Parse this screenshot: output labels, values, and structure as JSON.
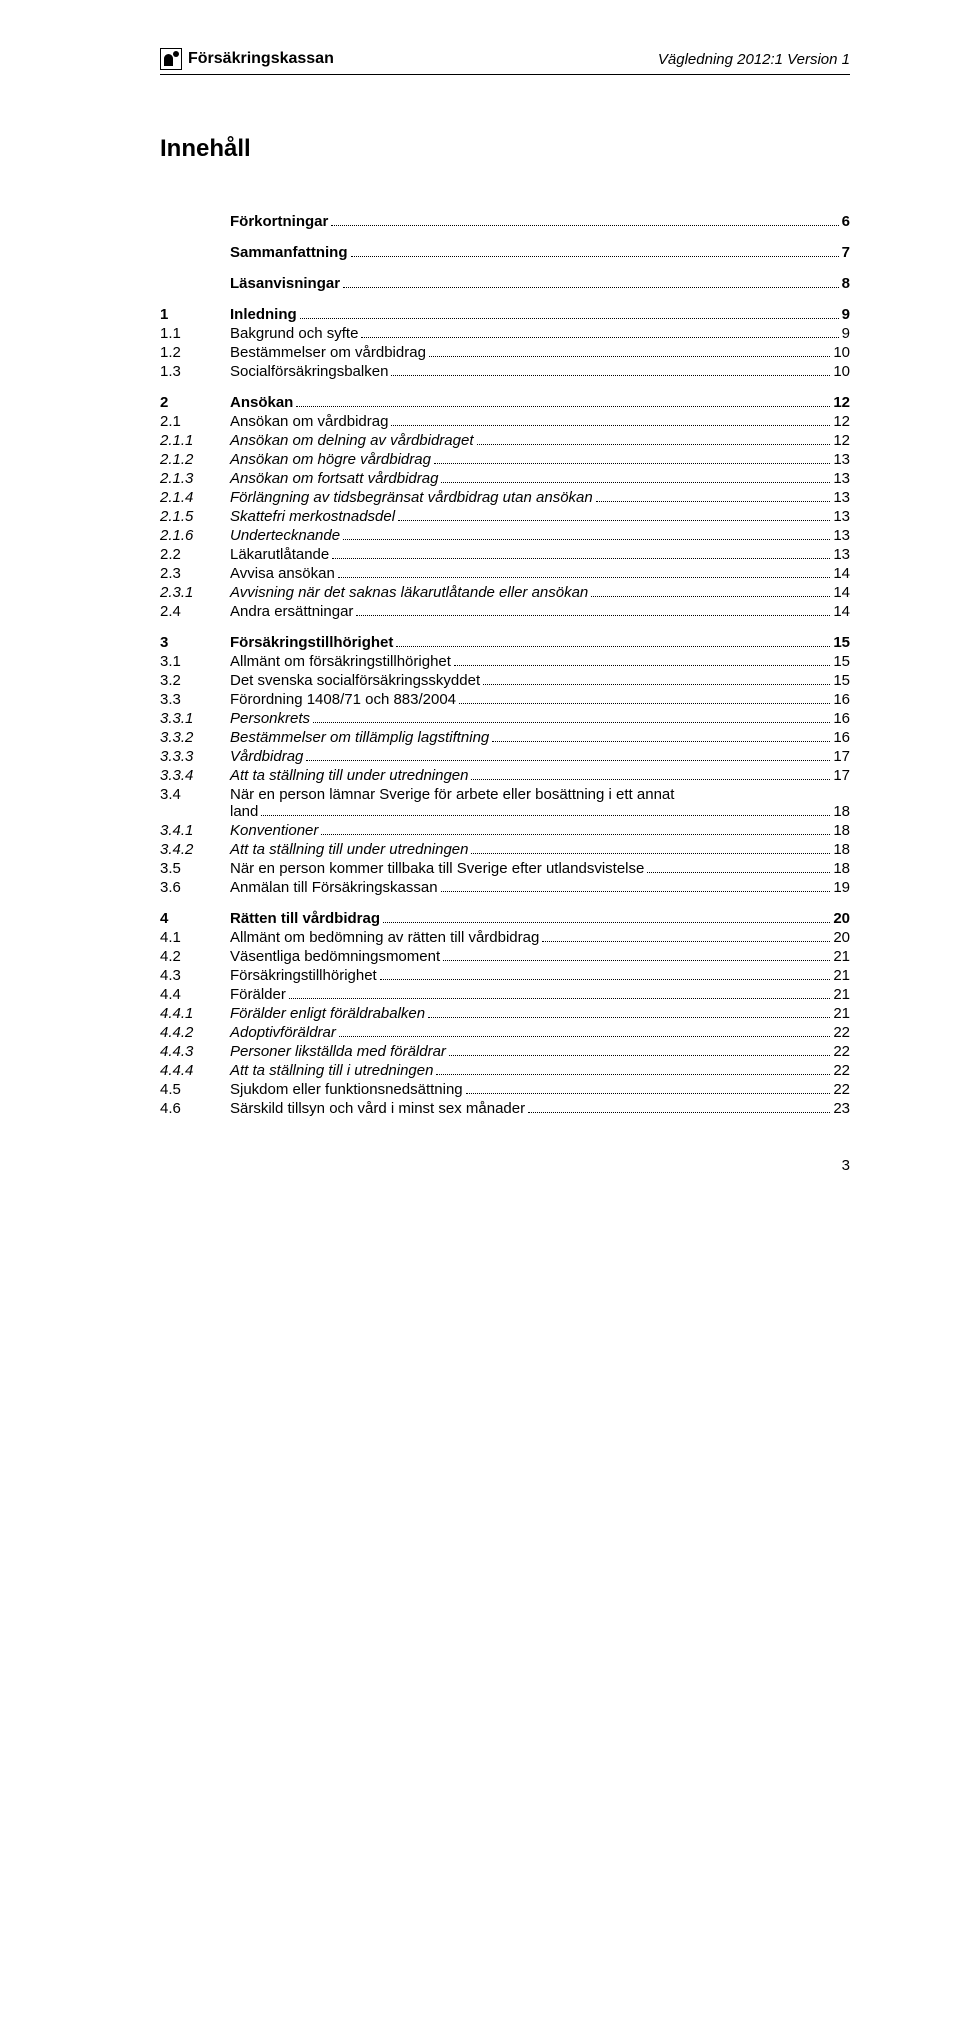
{
  "header": {
    "logo_text": "Försäkringskassan",
    "doc_ref": "Vägledning 2012:1 Version 1"
  },
  "title": "Innehåll",
  "page_number": "3",
  "toc": [
    {
      "num": "",
      "title": "Förkortningar",
      "page": "6",
      "bold": true,
      "gap": false
    },
    {
      "num": "",
      "title": "Sammanfattning",
      "page": "7",
      "bold": true,
      "gap": true
    },
    {
      "num": "",
      "title": "Läsanvisningar",
      "page": "8",
      "bold": true,
      "gap": true
    },
    {
      "num": "1",
      "title": "Inledning",
      "page": "9",
      "bold": true,
      "gap": true
    },
    {
      "num": "1.1",
      "title": "Bakgrund och syfte",
      "page": "9",
      "gap": false
    },
    {
      "num": "1.2",
      "title": "Bestämmelser om vårdbidrag",
      "page": "10",
      "gap": false
    },
    {
      "num": "1.3",
      "title": "Socialförsäkringsbalken",
      "page": "10",
      "gap": false
    },
    {
      "num": "2",
      "title": "Ansökan",
      "page": "12",
      "bold": true,
      "gap": true
    },
    {
      "num": "2.1",
      "title": "Ansökan om vårdbidrag",
      "page": "12",
      "gap": false
    },
    {
      "num": "2.1.1",
      "title": "Ansökan om delning av vårdbidraget",
      "page": "12",
      "italic": true,
      "gap": false
    },
    {
      "num": "2.1.2",
      "title": "Ansökan om högre vårdbidrag",
      "page": "13",
      "italic": true,
      "gap": false
    },
    {
      "num": "2.1.3",
      "title": "Ansökan om fortsatt vårdbidrag",
      "page": "13",
      "italic": true,
      "gap": false
    },
    {
      "num": "2.1.4",
      "title": "Förlängning av tidsbegränsat vårdbidrag utan ansökan",
      "page": "13",
      "italic": true,
      "gap": false
    },
    {
      "num": "2.1.5",
      "title": "Skattefri merkostnadsdel",
      "page": "13",
      "italic": true,
      "gap": false
    },
    {
      "num": "2.1.6",
      "title": "Undertecknande",
      "page": "13",
      "italic": true,
      "gap": false
    },
    {
      "num": "2.2",
      "title": "Läkarutlåtande",
      "page": "13",
      "gap": false
    },
    {
      "num": "2.3",
      "title": "Avvisa ansökan",
      "page": "14",
      "gap": false
    },
    {
      "num": "2.3.1",
      "title": "Avvisning när det saknas läkarutlåtande eller ansökan",
      "page": "14",
      "italic": true,
      "gap": false
    },
    {
      "num": "2.4",
      "title": "Andra ersättningar",
      "page": "14",
      "gap": false
    },
    {
      "num": "3",
      "title": "Försäkringstillhörighet",
      "page": "15",
      "bold": true,
      "gap": true
    },
    {
      "num": "3.1",
      "title": "Allmänt om försäkringstillhörighet",
      "page": "15",
      "gap": false
    },
    {
      "num": "3.2",
      "title": "Det svenska socialförsäkringsskyddet",
      "page": "15",
      "gap": false
    },
    {
      "num": "3.3",
      "title": "Förordning 1408/71 och 883/2004",
      "page": "16",
      "gap": false
    },
    {
      "num": "3.3.1",
      "title": "Personkrets",
      "page": "16",
      "italic": true,
      "gap": false
    },
    {
      "num": "3.3.2",
      "title": "Bestämmelser om tillämplig lagstiftning",
      "page": "16",
      "italic": true,
      "gap": false
    },
    {
      "num": "3.3.3",
      "title": "Vårdbidrag",
      "page": "17",
      "italic": true,
      "gap": false
    },
    {
      "num": "3.3.4",
      "title": "Att ta ställning till under utredningen",
      "page": "17",
      "italic": true,
      "gap": false
    },
    {
      "num": "3.4",
      "title_l1": "När en person lämnar Sverige för arbete eller bosättning i ett annat",
      "title_l2": "land",
      "page": "18",
      "multiline": true,
      "gap": false
    },
    {
      "num": "3.4.1",
      "title": "Konventioner",
      "page": "18",
      "italic": true,
      "gap": false
    },
    {
      "num": "3.4.2",
      "title": "Att ta ställning till under utredningen",
      "page": "18",
      "italic": true,
      "gap": false
    },
    {
      "num": "3.5",
      "title": "När en person kommer tillbaka till Sverige efter utlandsvistelse",
      "page": "18",
      "gap": false
    },
    {
      "num": "3.6",
      "title": "Anmälan till Försäkringskassan",
      "page": "19",
      "gap": false
    },
    {
      "num": "4",
      "title": "Rätten till vårdbidrag",
      "page": "20",
      "bold": true,
      "gap": true
    },
    {
      "num": "4.1",
      "title": "Allmänt om bedömning av rätten till vårdbidrag",
      "page": "20",
      "gap": false
    },
    {
      "num": "4.2",
      "title": "Väsentliga bedömningsmoment",
      "page": "21",
      "gap": false
    },
    {
      "num": "4.3",
      "title": "Försäkringstillhörighet",
      "page": "21",
      "gap": false
    },
    {
      "num": "4.4",
      "title": "Förälder",
      "page": "21",
      "gap": false
    },
    {
      "num": "4.4.1",
      "title": "Förälder enligt föräldrabalken",
      "page": "21",
      "italic": true,
      "gap": false
    },
    {
      "num": "4.4.2",
      "title": "Adoptivföräldrar",
      "page": "22",
      "italic": true,
      "gap": false
    },
    {
      "num": "4.4.3",
      "title": "Personer likställda med föräldrar",
      "page": "22",
      "italic": true,
      "gap": false
    },
    {
      "num": "4.4.4",
      "title": "Att ta ställning till i utredningen",
      "page": "22",
      "italic": true,
      "gap": false
    },
    {
      "num": "4.5",
      "title": "Sjukdom eller funktionsnedsättning",
      "page": "22",
      "gap": false
    },
    {
      "num": "4.6",
      "title": "Särskild tillsyn och vård i minst sex månader",
      "page": "23",
      "gap": false
    }
  ]
}
